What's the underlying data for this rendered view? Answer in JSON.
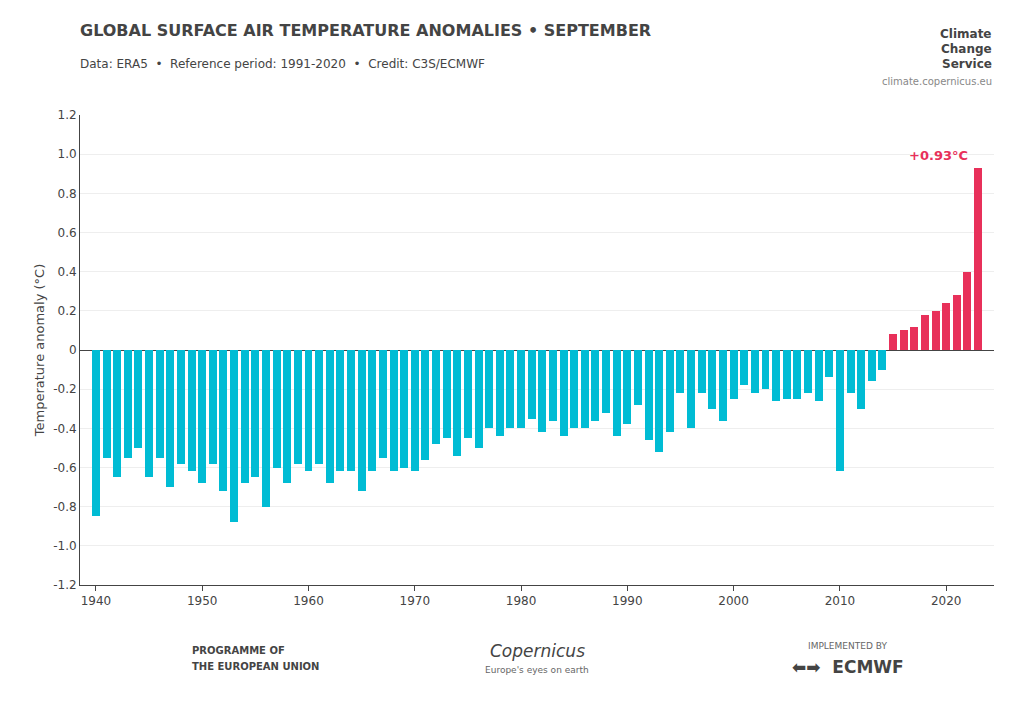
{
  "chart_data": {
    "type": "bar",
    "title": "GLOBAL SURFACE AIR TEMPERATURE ANOMALIES • SEPTEMBER",
    "subtitle": "Data: ERA5  •  Reference period: 1991-2020  •  Credit: C3S/ECMWF",
    "ylabel": "Temperature anomaly (°C)",
    "x": [
      1940,
      1941,
      1942,
      1943,
      1944,
      1945,
      1946,
      1947,
      1948,
      1949,
      1950,
      1951,
      1952,
      1953,
      1954,
      1955,
      1956,
      1957,
      1958,
      1959,
      1960,
      1961,
      1962,
      1963,
      1964,
      1965,
      1966,
      1967,
      1968,
      1969,
      1970,
      1971,
      1972,
      1973,
      1974,
      1975,
      1976,
      1977,
      1978,
      1979,
      1980,
      1981,
      1982,
      1983,
      1984,
      1985,
      1986,
      1987,
      1988,
      1989,
      1990,
      1991,
      1992,
      1993,
      1994,
      1995,
      1996,
      1997,
      1998,
      1999,
      2000,
      2001,
      2002,
      2003,
      2004,
      2005,
      2006,
      2007,
      2008,
      2009,
      2010,
      2011,
      2012,
      2013,
      2014,
      2015,
      2016,
      2017,
      2018,
      2019,
      2020,
      2021,
      2022,
      2023
    ],
    "values": [
      -0.85,
      -0.55,
      -0.65,
      -0.55,
      -0.5,
      -0.65,
      -0.55,
      -0.7,
      -0.58,
      -0.62,
      -0.68,
      -0.58,
      -0.72,
      -0.88,
      -0.68,
      -0.65,
      -0.8,
      -0.6,
      -0.68,
      -0.58,
      -0.62,
      -0.58,
      -0.68,
      -0.62,
      -0.62,
      -0.72,
      -0.62,
      -0.55,
      -0.62,
      -0.6,
      -0.62,
      -0.56,
      -0.48,
      -0.45,
      -0.54,
      -0.45,
      -0.5,
      -0.4,
      -0.44,
      -0.4,
      -0.4,
      -0.35,
      -0.42,
      -0.36,
      -0.44,
      -0.4,
      -0.4,
      -0.36,
      -0.32,
      -0.44,
      -0.38,
      -0.28,
      -0.46,
      -0.52,
      -0.42,
      -0.22,
      -0.4,
      -0.22,
      -0.3,
      -0.36,
      -0.25,
      -0.18,
      -0.22,
      -0.2,
      -0.26,
      -0.25,
      -0.25,
      -0.22,
      -0.26,
      -0.14,
      -0.62,
      -0.22,
      -0.3,
      -0.16,
      -0.1,
      0.08,
      0.1,
      0.12,
      0.18,
      0.2,
      0.24,
      0.28,
      0.4,
      0.93
    ],
    "colors": [
      "#00bcd4",
      "#00bcd4",
      "#00bcd4",
      "#00bcd4",
      "#00bcd4",
      "#00bcd4",
      "#00bcd4",
      "#00bcd4",
      "#00bcd4",
      "#00bcd4",
      "#00bcd4",
      "#00bcd4",
      "#00bcd4",
      "#00bcd4",
      "#00bcd4",
      "#00bcd4",
      "#00bcd4",
      "#00bcd4",
      "#00bcd4",
      "#00bcd4",
      "#00bcd4",
      "#00bcd4",
      "#00bcd4",
      "#00bcd4",
      "#00bcd4",
      "#00bcd4",
      "#00bcd4",
      "#00bcd4",
      "#00bcd4",
      "#00bcd4",
      "#00bcd4",
      "#00bcd4",
      "#00bcd4",
      "#00bcd4",
      "#00bcd4",
      "#00bcd4",
      "#00bcd4",
      "#00bcd4",
      "#00bcd4",
      "#00bcd4",
      "#00bcd4",
      "#00bcd4",
      "#00bcd4",
      "#00bcd4",
      "#00bcd4",
      "#00bcd4",
      "#00bcd4",
      "#00bcd4",
      "#00bcd4",
      "#00bcd4",
      "#00bcd4",
      "#00bcd4",
      "#00bcd4",
      "#00bcd4",
      "#00bcd4",
      "#00bcd4",
      "#00bcd4",
      "#00bcd4",
      "#00bcd4",
      "#00bcd4",
      "#00bcd4",
      "#00bcd4",
      "#00bcd4",
      "#00bcd4",
      "#00bcd4",
      "#00bcd4",
      "#00bcd4",
      "#00bcd4",
      "#00bcd4",
      "#00bcd4",
      "#00bcd4",
      "#00bcd4",
      "#00bcd4",
      "#00bcd4",
      "#00bcd4",
      "#e8305a",
      "#e8305a",
      "#e8305a",
      "#e8305a",
      "#e8305a",
      "#e8305a",
      "#e8305a",
      "#e8305a",
      "#e8305a"
    ],
    "xlim": [
      1938.5,
      2024.5
    ],
    "xticks": [
      1940,
      1950,
      1960,
      1970,
      1980,
      1990,
      2000,
      2010,
      2020
    ],
    "ylim": [
      -1.2,
      1.2
    ],
    "yticks": [
      -1.2,
      {
        "value": -1.0,
        "label": "-1.0"
      },
      -0.8,
      -0.6,
      -0.4,
      -0.2,
      0,
      0.2,
      0.4,
      0.6,
      0.8,
      {
        "value": 1.0,
        "label": "1.0"
      },
      1.2
    ],
    "grid": true,
    "annotations": [
      {
        "text": "+0.93°C",
        "x": 2023,
        "y": 0.93,
        "color": "#e8305a"
      },
      {
        "text": "Climate"
      },
      {
        "text": "Change"
      },
      {
        "text": "Service"
      },
      {
        "text": "climate.copernicus.eu"
      },
      {
        "text": "PROGRAMME OF"
      },
      {
        "text": "THE EUROPEAN UNION"
      },
      {
        "text": "Copernicus"
      },
      {
        "text": "Europe's eyes on earth"
      },
      {
        "text": "IMPLEMENTED BY"
      },
      {
        "text": "⬅➡  ECMWF"
      }
    ]
  }
}
